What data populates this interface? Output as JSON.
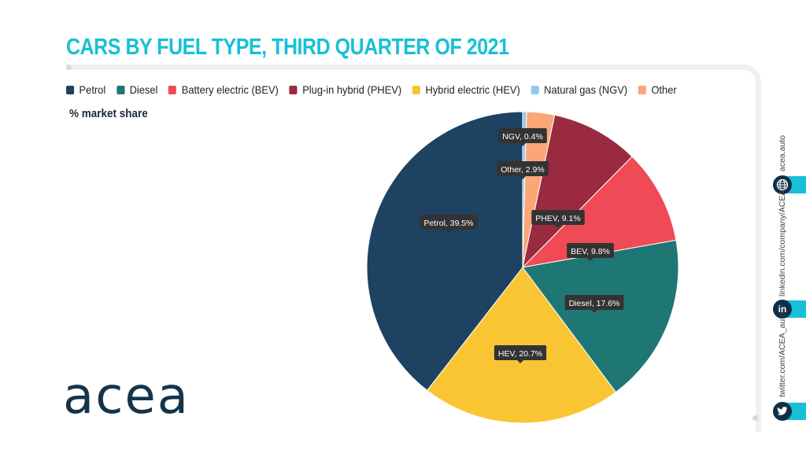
{
  "chart_data": {
    "type": "pie",
    "title": "CARS BY FUEL TYPE, THIRD QUARTER OF 2021",
    "subtitle": "% market share",
    "legend_position": "top",
    "legend": [
      "Petrol",
      "Diesel",
      "Battery electric (BEV)",
      "Plug-in hybrid (PHEV)",
      "Hybrid electric (HEV)",
      "Natural gas (NGV)",
      "Other"
    ],
    "slices": [
      {
        "name": "NGV",
        "legend": "Natural gas (NGV)",
        "value": 0.4,
        "label": "NGV, 0.4%",
        "color": "#8ec9ef"
      },
      {
        "name": "Other",
        "legend": "Other",
        "value": 2.9,
        "label": "Other, 2.9%",
        "color": "#fba679"
      },
      {
        "name": "PHEV",
        "legend": "Plug-in hybrid (PHEV)",
        "value": 9.1,
        "label": "PHEV, 9.1%",
        "color": "#9a2a40"
      },
      {
        "name": "BEV",
        "legend": "Battery electric (BEV)",
        "value": 9.8,
        "label": "BEV, 9.8%",
        "color": "#ef4a55"
      },
      {
        "name": "Diesel",
        "legend": "Diesel",
        "value": 17.6,
        "label": "Diesel, 17.6%",
        "color": "#1f7775"
      },
      {
        "name": "HEV",
        "legend": "Hybrid electric (HEV)",
        "value": 20.7,
        "label": "HEV, 20.7%",
        "color": "#f9c532"
      },
      {
        "name": "Petrol",
        "legend": "Petrol",
        "value": 39.5,
        "label": "Petrol, 39.5%",
        "color": "#1e4262"
      }
    ]
  },
  "legend_colors": [
    "#1e4262",
    "#1f7775",
    "#ef4a55",
    "#9a2a40",
    "#f9c532",
    "#8ec9ef",
    "#fba679"
  ],
  "brand": {
    "logo": "acea",
    "accent": "#17c0d6"
  },
  "social": {
    "web": "acea.auto",
    "linkedin": "linkedin.com/company/ACEA/",
    "twitter": "twitter.com/ACEA_auto",
    "linkedin_icon": "in"
  }
}
